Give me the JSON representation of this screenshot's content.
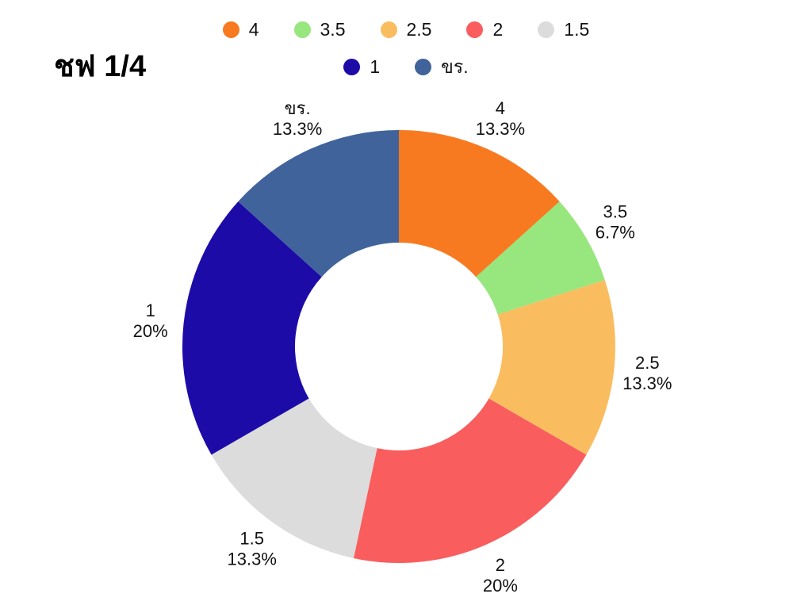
{
  "title": "ชฟ 1/4",
  "legend": {
    "rows": [
      [
        {
          "label": "4",
          "color": "#f87a20"
        },
        {
          "label": "3.5",
          "color": "#98e67e"
        },
        {
          "label": "2.5",
          "color": "#f9bd60"
        },
        {
          "label": "2",
          "color": "#f95d5e"
        },
        {
          "label": "1.5",
          "color": "#dcdcdc"
        }
      ],
      [
        {
          "label": "1",
          "color": "#1d0ba8"
        },
        {
          "label": "ขร.",
          "color": "#40639b"
        }
      ]
    ]
  },
  "chart_data": {
    "type": "pie",
    "subtype": "donut",
    "title": "ชฟ 1/4",
    "categories": [
      "4",
      "3.5",
      "2.5",
      "2",
      "1.5",
      "1",
      "ขร."
    ],
    "values": [
      13.3,
      6.7,
      13.3,
      20,
      13.3,
      20,
      13.3
    ],
    "percent_labels": [
      "13.3%",
      "6.7%",
      "13.3%",
      "20%",
      "13.3%",
      "20%",
      "13.3%"
    ],
    "colors": [
      "#f87a20",
      "#98e67e",
      "#f9bd60",
      "#f95d5e",
      "#dcdcdc",
      "#1d0ba8",
      "#40639b"
    ],
    "start_angle_deg": 0,
    "direction": "clockwise",
    "inner_radius_ratio": 0.48,
    "legend_position": "top",
    "labels_outside": true
  }
}
